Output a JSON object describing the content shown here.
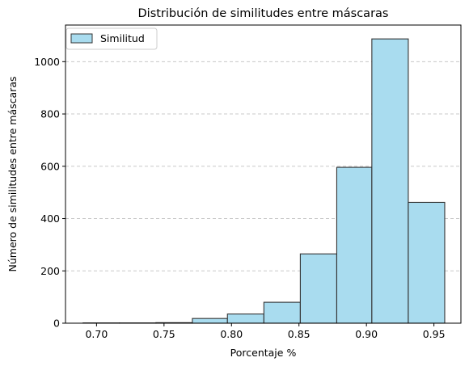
{
  "chart_data": {
    "type": "bar",
    "title": "Distribución de similitudes entre máscaras",
    "xlabel": "Porcentaje %",
    "ylabel": "Número de similitudes entre máscaras",
    "xlim": [
      0.677,
      0.97
    ],
    "ylim": [
      0,
      1140
    ],
    "x_ticks": [
      "0.70",
      "0.75",
      "0.80",
      "0.85",
      "0.90",
      "0.95"
    ],
    "y_ticks": [
      "0",
      "200",
      "400",
      "600",
      "800",
      "1000"
    ],
    "grid": {
      "y": true,
      "x": false,
      "style": "dashed"
    },
    "legend": {
      "position": "top-left",
      "entries": [
        "Similitud"
      ]
    },
    "series": [
      {
        "name": "Similitud",
        "color": "#a9dcef",
        "edge_color": "#333333",
        "bins": [
          {
            "x0": 0.69,
            "x1": 0.717,
            "value": 1
          },
          {
            "x0": 0.717,
            "x1": 0.744,
            "value": 1
          },
          {
            "x0": 0.744,
            "x1": 0.771,
            "value": 2
          },
          {
            "x0": 0.771,
            "x1": 0.797,
            "value": 18
          },
          {
            "x0": 0.797,
            "x1": 0.824,
            "value": 35
          },
          {
            "x0": 0.824,
            "x1": 0.851,
            "value": 80
          },
          {
            "x0": 0.851,
            "x1": 0.878,
            "value": 265
          },
          {
            "x0": 0.878,
            "x1": 0.904,
            "value": 596
          },
          {
            "x0": 0.904,
            "x1": 0.931,
            "value": 1087
          },
          {
            "x0": 0.931,
            "x1": 0.958,
            "value": 462
          }
        ]
      }
    ]
  }
}
